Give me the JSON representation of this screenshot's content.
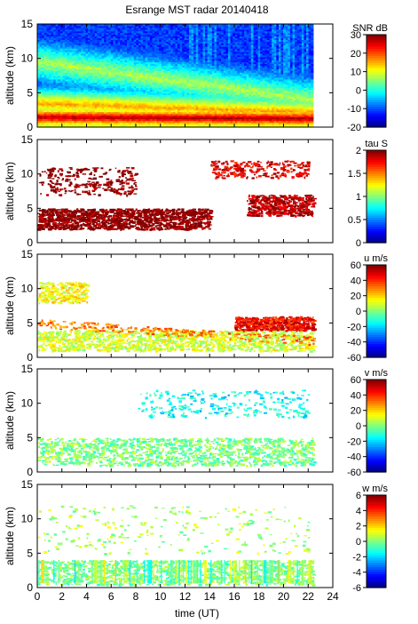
{
  "title": "Esrange MST radar 20140418",
  "x_axis": {
    "label": "time (UT)",
    "range": [
      0,
      24
    ],
    "ticks": [
      0,
      2,
      4,
      6,
      8,
      10,
      12,
      14,
      16,
      18,
      20,
      22,
      24
    ]
  },
  "panels": [
    {
      "ylabel": "altitude (km)",
      "colorbar_label": "SNR dB",
      "yrange": [
        0,
        15
      ],
      "yticks": [
        0,
        5,
        10,
        15
      ],
      "crange": [
        -20,
        30
      ],
      "cticks": [
        -20,
        -10,
        0,
        10,
        20,
        30
      ],
      "fill": "full"
    },
    {
      "ylabel": "altitude (km)",
      "colorbar_label": "tau S",
      "yrange": [
        0,
        15
      ],
      "yticks": [
        0,
        5,
        10,
        15
      ],
      "crange": [
        0,
        2
      ],
      "cticks": [
        0,
        0.5,
        1,
        1.5,
        2
      ],
      "fill": "sparse"
    },
    {
      "ylabel": "altitude (km)",
      "colorbar_label": "u m/s",
      "yrange": [
        0,
        15
      ],
      "yticks": [
        0,
        5,
        10,
        15
      ],
      "crange": [
        -60,
        60
      ],
      "cticks": [
        -60,
        -40,
        -20,
        0,
        20,
        40,
        60
      ],
      "fill": "sparse"
    },
    {
      "ylabel": "altitude (km)",
      "colorbar_label": "v m/s",
      "yrange": [
        0,
        15
      ],
      "yticks": [
        0,
        5,
        10,
        15
      ],
      "crange": [
        -60,
        60
      ],
      "cticks": [
        -60,
        -40,
        -20,
        0,
        20,
        40,
        60
      ],
      "fill": "sparse"
    },
    {
      "ylabel": "altitude (km)",
      "colorbar_label": "w m/s",
      "yrange": [
        0,
        15
      ],
      "yticks": [
        0,
        5,
        10,
        15
      ],
      "crange": [
        -6,
        6
      ],
      "cticks": [
        -6,
        -4,
        -2,
        0,
        2,
        4,
        6
      ],
      "fill": "sparse"
    }
  ],
  "chart_data": {
    "type": "heatmap",
    "title": "Esrange MST radar 20140418",
    "xlabel": "time (UT)",
    "xlim": [
      0,
      24
    ],
    "data_extent_x": [
      0,
      22.4
    ],
    "panels": [
      {
        "variable": "SNR dB",
        "ylabel": "altitude (km)",
        "ylim": [
          0,
          15
        ],
        "clim": [
          -20,
          30
        ],
        "background": -12,
        "features": [
          {
            "t": [
              0,
              22.4
            ],
            "alt": [
              1.5,
              1.3
            ],
            "value": 25,
            "description": "strong low-level layer"
          },
          {
            "t": [
              0,
              22.4
            ],
            "alt": [
              3.5,
              2.2
            ],
            "value": 15
          },
          {
            "t": [
              0,
              22.4
            ],
            "alt": [
              9.5,
              4.0
            ],
            "value": 5
          },
          {
            "t": [
              0,
              22.4
            ],
            "alt": [
              0.2,
              0.2
            ],
            "value": 10
          }
        ]
      },
      {
        "variable": "tau S",
        "ylabel": "altitude (km)",
        "ylim": [
          0,
          15
        ],
        "clim": [
          0,
          2
        ],
        "features": [
          {
            "t": [
              0,
              14
            ],
            "alt": [
              2,
              5
            ],
            "value": 2.0,
            "coverage": "dense"
          },
          {
            "t": [
              0,
              8
            ],
            "alt": [
              7,
              11
            ],
            "value": 2.0,
            "coverage": "sparse"
          },
          {
            "t": [
              17,
              22.4
            ],
            "alt": [
              4,
              7
            ],
            "value": 1.9,
            "coverage": "medium"
          },
          {
            "t": [
              14,
              22
            ],
            "alt": [
              9.5,
              12
            ],
            "value": 1.8,
            "coverage": "sparse"
          }
        ]
      },
      {
        "variable": "u m/s",
        "ylabel": "altitude (km)",
        "ylim": [
          0,
          15
        ],
        "clim": [
          -60,
          60
        ],
        "features": [
          {
            "t": [
              0,
              22.4
            ],
            "alt": [
              1,
              4
            ],
            "value": 10,
            "coverage": "dense"
          },
          {
            "t": [
              0,
              22.4
            ],
            "alt": [
              5,
              2.5
            ],
            "value": 30,
            "description": "descending jet"
          },
          {
            "t": [
              16,
              22.4
            ],
            "alt": [
              4,
              6
            ],
            "value": 45,
            "coverage": "medium"
          },
          {
            "t": [
              0,
              4
            ],
            "alt": [
              8,
              11
            ],
            "value": 15,
            "coverage": "sparse"
          }
        ]
      },
      {
        "variable": "v m/s",
        "ylabel": "altitude (km)",
        "ylim": [
          0,
          15
        ],
        "clim": [
          -60,
          60
        ],
        "features": [
          {
            "t": [
              0,
              22.4
            ],
            "alt": [
              1,
              5
            ],
            "value": 0,
            "coverage": "dense"
          },
          {
            "t": [
              8,
              22
            ],
            "alt": [
              8,
              12
            ],
            "value": -15,
            "coverage": "sparse"
          }
        ]
      },
      {
        "variable": "w m/s",
        "ylabel": "altitude (km)",
        "ylim": [
          0,
          15
        ],
        "clim": [
          -6,
          6
        ],
        "features": [
          {
            "t": [
              0,
              22.4
            ],
            "alt": [
              0.5,
              4
            ],
            "value": 0,
            "coverage": "dense"
          },
          {
            "t": [
              0,
              22
            ],
            "alt": [
              5,
              12
            ],
            "value": 0.5,
            "coverage": "sparse"
          }
        ]
      }
    ]
  }
}
